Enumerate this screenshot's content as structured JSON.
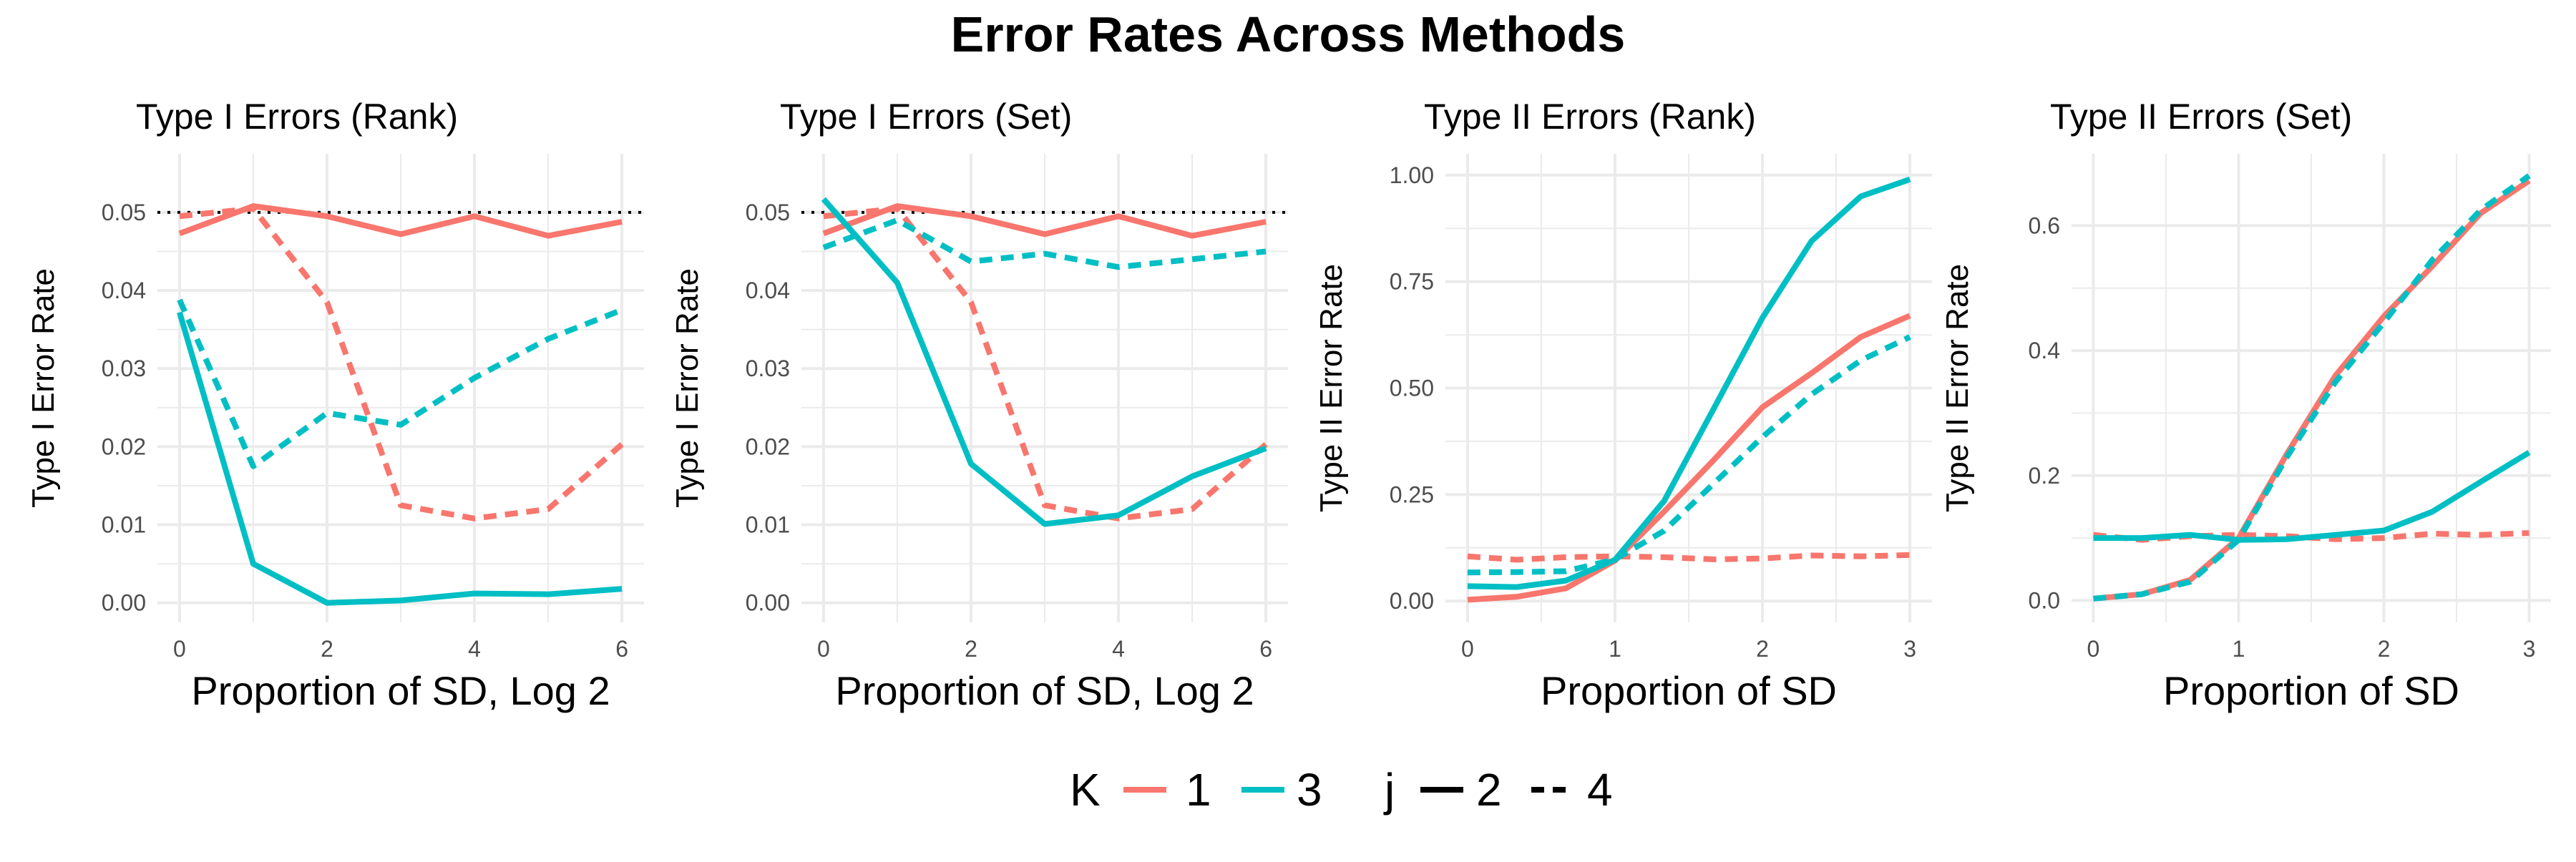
{
  "figure_title": "Error Rates Across Methods",
  "colors": {
    "K1": "#F8766D",
    "K3": "#00BFC4",
    "grid": "#ebebeb",
    "ref": "#000000"
  },
  "legend": {
    "color_title": "K",
    "color_items": [
      {
        "label": "1",
        "color": "#F8766D"
      },
      {
        "label": "3",
        "color": "#00BFC4"
      }
    ],
    "linetype_title": "j",
    "linetype_items": [
      {
        "label": "2",
        "dash": "solid"
      },
      {
        "label": "4",
        "dash": "dashed"
      }
    ],
    "position": "bottom"
  },
  "chart_data": [
    {
      "type": "line",
      "title": "Type I Errors (Rank)",
      "xlabel": "Proportion of SD, Log 2",
      "ylabel": "Type I Error Rate",
      "xlim": [
        -0.3,
        6.3
      ],
      "ylim": [
        -0.0025,
        0.0575
      ],
      "xticks": [
        0,
        2,
        4,
        6
      ],
      "yticks": [
        0.0,
        0.01,
        0.02,
        0.03,
        0.04,
        0.05
      ],
      "ytick_labels": [
        "0.00",
        "0.01",
        "0.02",
        "0.03",
        "0.04",
        "0.05"
      ],
      "grid": true,
      "reference_line": 0.05,
      "series": [
        {
          "K": "1",
          "j": "2",
          "x": [
            0,
            1,
            2,
            3,
            4,
            5,
            6
          ],
          "y": [
            0.0473,
            0.0508,
            0.0495,
            0.0472,
            0.0495,
            0.047,
            0.0488
          ]
        },
        {
          "K": "1",
          "j": "4",
          "x": [
            0,
            1,
            2,
            3,
            4,
            5,
            6
          ],
          "y": [
            0.0495,
            0.0505,
            0.0385,
            0.0125,
            0.0108,
            0.012,
            0.0203
          ]
        },
        {
          "K": "3",
          "j": "2",
          "x": [
            0,
            1,
            2,
            3,
            4,
            5,
            6
          ],
          "y": [
            0.0372,
            0.005,
            0.0,
            0.0003,
            0.0012,
            0.0011,
            0.0018
          ]
        },
        {
          "K": "3",
          "j": "4",
          "x": [
            0,
            1,
            2,
            3,
            4,
            5,
            6
          ],
          "y": [
            0.0388,
            0.0175,
            0.0243,
            0.0228,
            0.0288,
            0.0338,
            0.0375
          ]
        }
      ]
    },
    {
      "type": "line",
      "title": "Type I Errors (Set)",
      "xlabel": "Proportion of SD, Log 2",
      "ylabel": "Type I Error Rate",
      "xlim": [
        -0.3,
        6.3
      ],
      "ylim": [
        -0.0025,
        0.0575
      ],
      "xticks": [
        0,
        2,
        4,
        6
      ],
      "yticks": [
        0.0,
        0.01,
        0.02,
        0.03,
        0.04,
        0.05
      ],
      "ytick_labels": [
        "0.00",
        "0.01",
        "0.02",
        "0.03",
        "0.04",
        "0.05"
      ],
      "grid": true,
      "reference_line": 0.05,
      "series": [
        {
          "K": "1",
          "j": "2",
          "x": [
            0,
            1,
            2,
            3,
            4,
            5,
            6
          ],
          "y": [
            0.0473,
            0.0508,
            0.0495,
            0.0472,
            0.0495,
            0.047,
            0.0488
          ]
        },
        {
          "K": "1",
          "j": "4",
          "x": [
            0,
            1,
            2,
            3,
            4,
            5,
            6
          ],
          "y": [
            0.0495,
            0.0505,
            0.0385,
            0.0125,
            0.0108,
            0.012,
            0.0203
          ]
        },
        {
          "K": "3",
          "j": "2",
          "x": [
            0,
            1,
            2,
            3,
            4,
            5,
            6
          ],
          "y": [
            0.0517,
            0.041,
            0.0178,
            0.0101,
            0.0112,
            0.0162,
            0.0198
          ]
        },
        {
          "K": "3",
          "j": "4",
          "x": [
            0,
            1,
            2,
            3,
            4,
            5,
            6
          ],
          "y": [
            0.0455,
            0.049,
            0.0437,
            0.0447,
            0.043,
            0.044,
            0.045
          ]
        }
      ]
    },
    {
      "type": "line",
      "title": "Type II Errors (Rank)",
      "xlabel": "Proportion of SD",
      "ylabel": "Type II Error Rate",
      "xlim": [
        -0.15,
        3.15
      ],
      "ylim": [
        -0.05,
        1.05
      ],
      "xticks": [
        0,
        1,
        2,
        3
      ],
      "yticks": [
        0.0,
        0.25,
        0.5,
        0.75,
        1.0
      ],
      "ytick_labels": [
        "0.00",
        "0.25",
        "0.50",
        "0.75",
        "1.00"
      ],
      "grid": true,
      "series": [
        {
          "K": "1",
          "j": "2",
          "x": [
            0,
            0.333,
            0.667,
            1,
            1.333,
            1.667,
            2,
            2.333,
            2.667,
            3
          ],
          "y": [
            0.003,
            0.01,
            0.03,
            0.095,
            0.21,
            0.33,
            0.455,
            0.535,
            0.62,
            0.67
          ]
        },
        {
          "K": "1",
          "j": "4",
          "x": [
            0,
            0.333,
            0.667,
            1,
            1.333,
            1.667,
            2,
            2.333,
            2.667,
            3
          ],
          "y": [
            0.105,
            0.097,
            0.103,
            0.105,
            0.103,
            0.098,
            0.1,
            0.107,
            0.105,
            0.108
          ]
        },
        {
          "K": "3",
          "j": "2",
          "x": [
            0,
            0.333,
            0.667,
            1,
            1.333,
            1.667,
            2,
            2.333,
            2.667,
            3
          ],
          "y": [
            0.035,
            0.033,
            0.048,
            0.097,
            0.235,
            0.45,
            0.665,
            0.845,
            0.95,
            0.99
          ]
        },
        {
          "K": "3",
          "j": "4",
          "x": [
            0,
            0.333,
            0.667,
            1,
            1.333,
            1.667,
            2,
            2.333,
            2.667,
            3
          ],
          "y": [
            0.067,
            0.068,
            0.07,
            0.098,
            0.165,
            0.275,
            0.385,
            0.485,
            0.565,
            0.62
          ]
        }
      ]
    },
    {
      "type": "line",
      "title": "Type II Errors (Set)",
      "xlabel": "Proportion of SD",
      "ylabel": "Type II Error Rate",
      "xlim": [
        -0.15,
        3.15
      ],
      "ylim": [
        -0.035,
        0.715
      ],
      "xticks": [
        0,
        1,
        2,
        3
      ],
      "yticks": [
        0.0,
        0.2,
        0.4,
        0.6
      ],
      "ytick_labels": [
        "0.0",
        "0.2",
        "0.4",
        "0.6"
      ],
      "grid": true,
      "series": [
        {
          "K": "1",
          "j": "2",
          "x": [
            0,
            0.333,
            0.667,
            1,
            1.333,
            1.667,
            2,
            2.333,
            2.667,
            3
          ],
          "y": [
            0.003,
            0.01,
            0.033,
            0.1,
            0.235,
            0.36,
            0.455,
            0.535,
            0.62,
            0.672
          ]
        },
        {
          "K": "1",
          "j": "4",
          "x": [
            0,
            0.333,
            0.667,
            1,
            1.333,
            1.667,
            2,
            2.333,
            2.667,
            3
          ],
          "y": [
            0.105,
            0.097,
            0.103,
            0.105,
            0.103,
            0.098,
            0.1,
            0.107,
            0.105,
            0.108
          ]
        },
        {
          "K": "3",
          "j": "2",
          "x": [
            0,
            0.333,
            0.667,
            1,
            1.333,
            1.667,
            2,
            2.333,
            2.667,
            3
          ],
          "y": [
            0.1,
            0.1,
            0.105,
            0.097,
            0.098,
            0.105,
            0.112,
            0.142,
            0.19,
            0.237
          ]
        },
        {
          "K": "3",
          "j": "4",
          "x": [
            0,
            0.333,
            0.667,
            1,
            1.333,
            1.667,
            2,
            2.333,
            2.667,
            3
          ],
          "y": [
            0.003,
            0.01,
            0.03,
            0.097,
            0.23,
            0.35,
            0.445,
            0.545,
            0.625,
            0.68
          ]
        }
      ]
    }
  ]
}
